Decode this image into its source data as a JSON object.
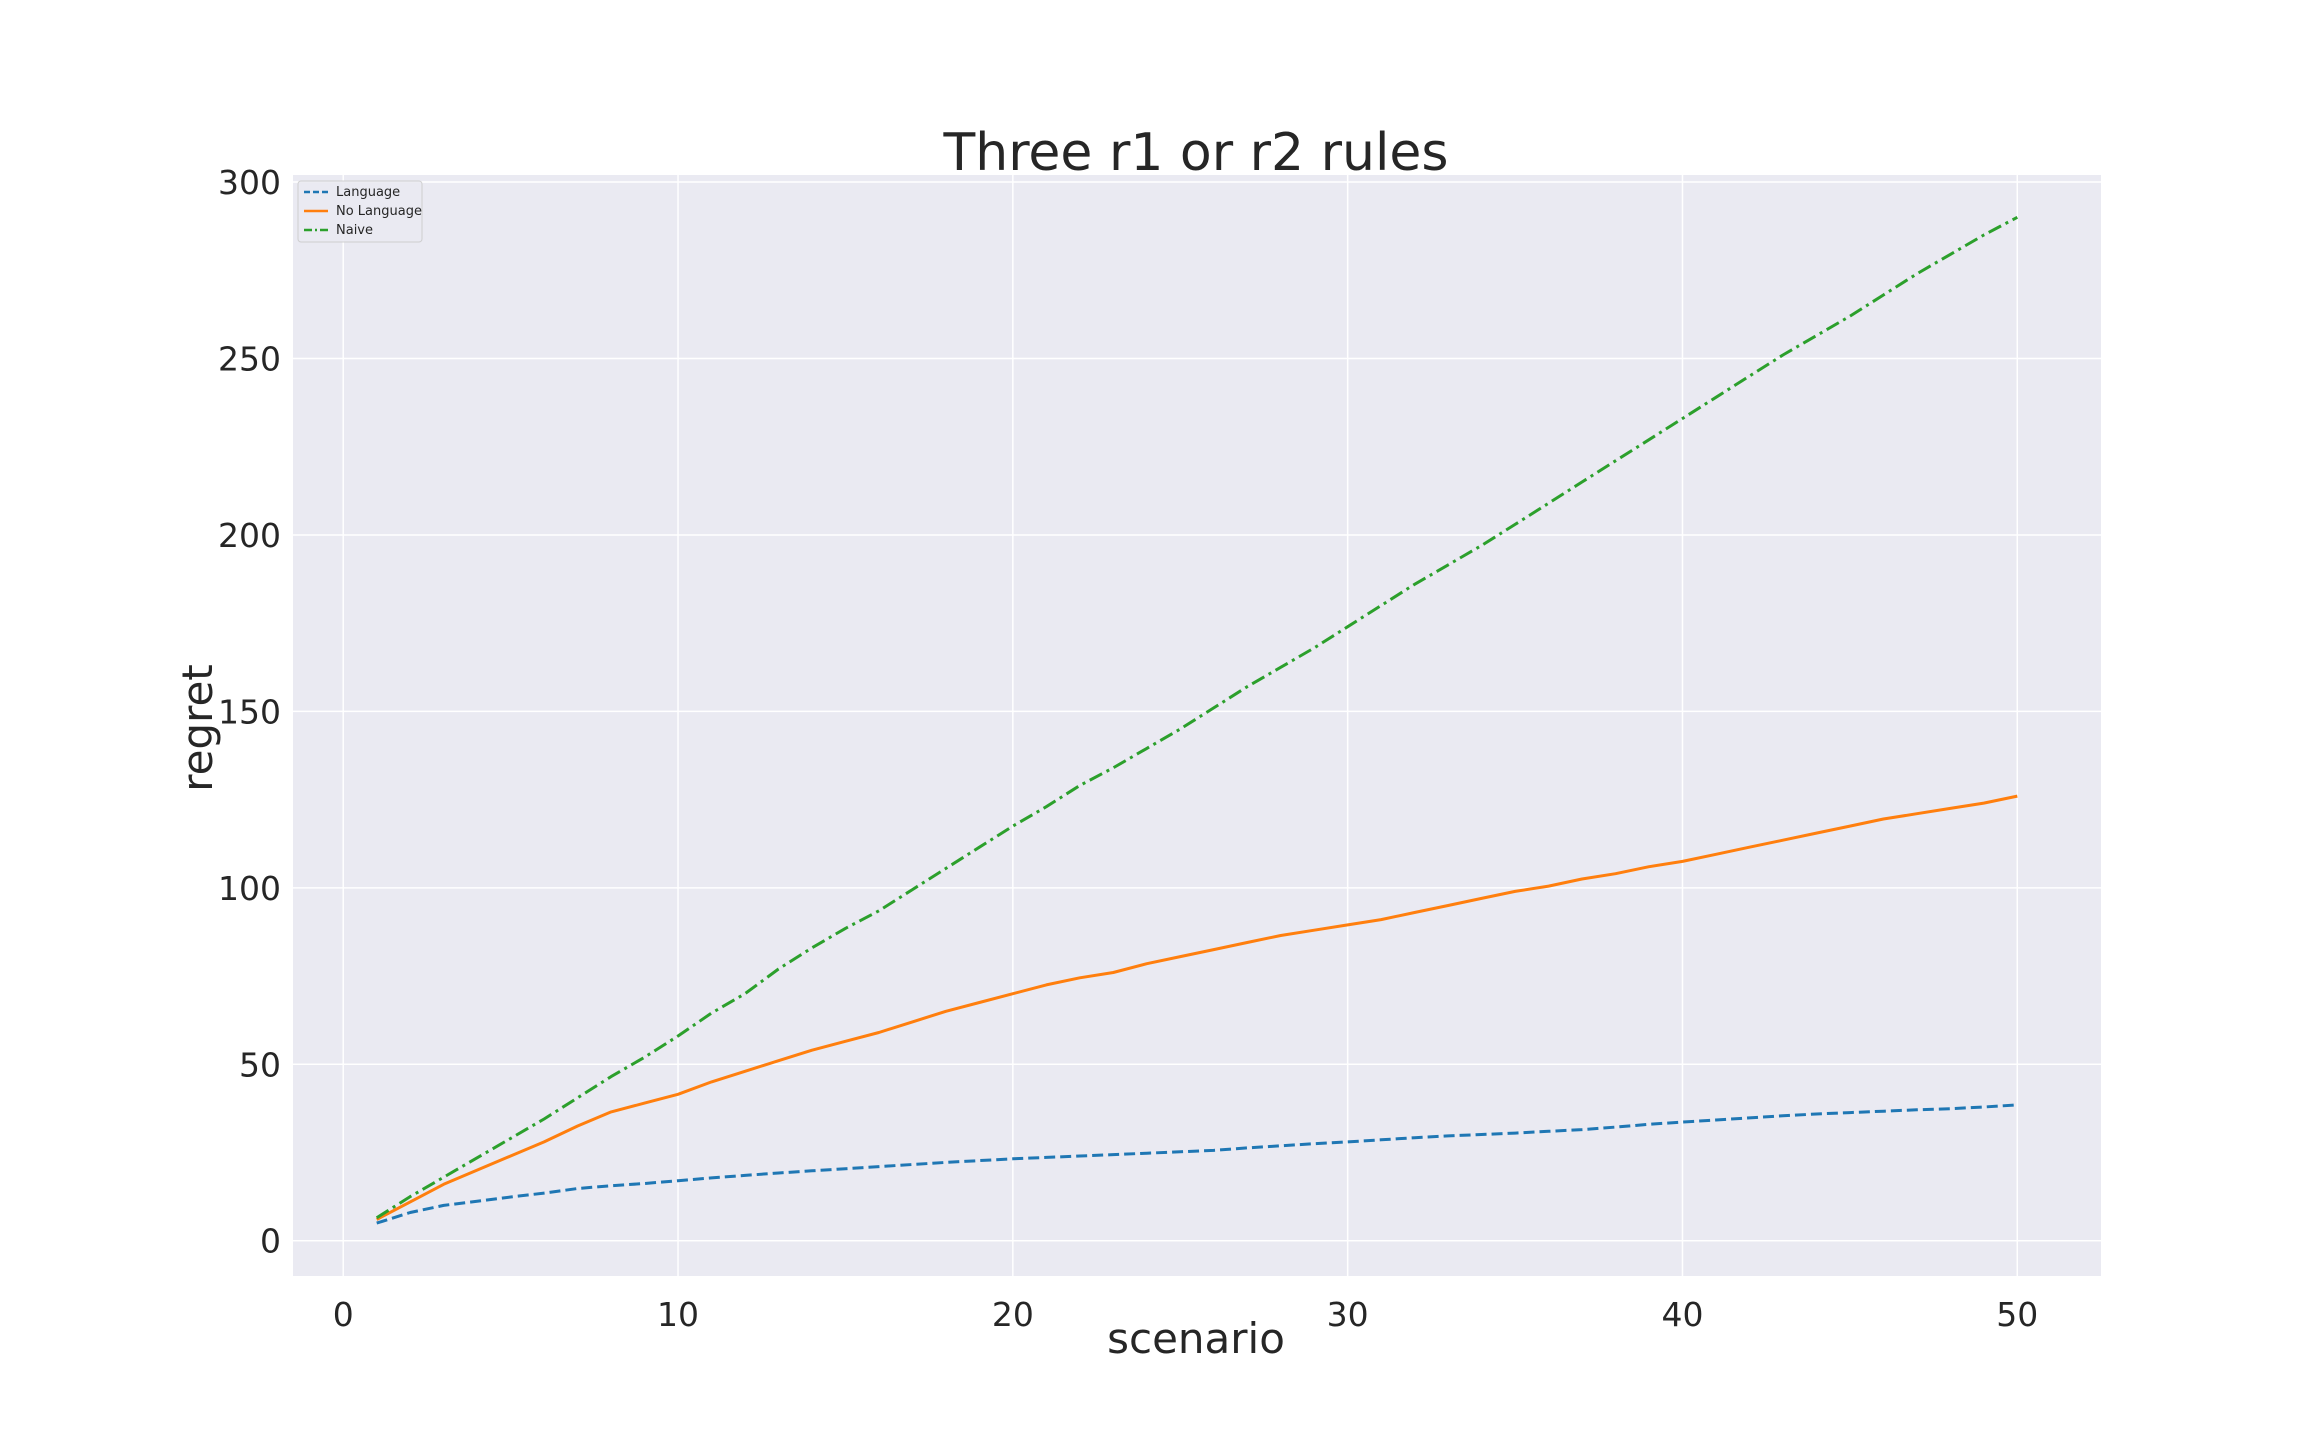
{
  "chart_data": {
    "type": "line",
    "title": "Three r1 or r2 rules",
    "xlabel": "scenario",
    "ylabel": "regret",
    "xlim": [
      -1.5,
      52.5
    ],
    "ylim": [
      -10,
      302
    ],
    "xticks": [
      0,
      10,
      20,
      30,
      40,
      50
    ],
    "yticks": [
      0,
      50,
      100,
      150,
      200,
      250,
      300
    ],
    "grid": true,
    "legend_position": "top-left",
    "x": [
      1,
      2,
      3,
      4,
      5,
      6,
      7,
      8,
      9,
      10,
      11,
      12,
      13,
      14,
      15,
      16,
      17,
      18,
      19,
      20,
      21,
      22,
      23,
      24,
      25,
      26,
      27,
      28,
      29,
      30,
      31,
      32,
      33,
      34,
      35,
      36,
      37,
      38,
      39,
      40,
      41,
      42,
      43,
      44,
      45,
      46,
      47,
      48,
      49,
      50
    ],
    "series": [
      {
        "name": "Language",
        "color": "#1f77b4",
        "dash": "dashed",
        "values": [
          5,
          8,
          10,
          11.2,
          12.4,
          13.5,
          14.8,
          15.6,
          16.2,
          17,
          17.8,
          18.5,
          19.2,
          19.8,
          20.4,
          21,
          21.6,
          22.2,
          22.7,
          23.2,
          23.6,
          24,
          24.4,
          24.8,
          25.2,
          25.6,
          26.3,
          26.9,
          27.5,
          28,
          28.6,
          29.2,
          29.7,
          30.1,
          30.5,
          31,
          31.5,
          32.2,
          33,
          33.6,
          34.2,
          34.8,
          35.4,
          35.9,
          36.3,
          36.7,
          37.1,
          37.4,
          37.9,
          38.5
        ]
      },
      {
        "name": "No Language",
        "color": "#ff7f0e",
        "dash": "solid",
        "values": [
          6,
          11,
          16,
          20,
          24,
          28,
          32.5,
          36.5,
          39,
          41.5,
          45,
          48,
          51,
          54,
          56.5,
          59,
          62,
          65,
          67.5,
          70,
          72.5,
          74.5,
          76,
          78.5,
          80.5,
          82.5,
          84.5,
          86.5,
          88,
          89.5,
          91,
          93,
          95,
          97,
          99,
          100.5,
          102.5,
          104,
          106,
          107.5,
          109.5,
          111.5,
          113.5,
          115.5,
          117.5,
          119.5,
          121,
          122.5,
          124,
          126
        ]
      },
      {
        "name": "Naive",
        "color": "#2ca02c",
        "dash": "dashdot",
        "values": [
          6.5,
          12.5,
          18,
          23.5,
          29,
          34.5,
          40.5,
          46.5,
          52,
          58,
          64.5,
          70,
          77,
          83,
          88.5,
          93.5,
          99.5,
          105.5,
          111.5,
          117.5,
          123,
          129,
          134,
          139.5,
          145,
          151,
          157,
          162.5,
          168,
          174,
          180,
          186,
          191.5,
          197,
          203,
          209,
          215,
          221,
          227,
          233,
          239,
          245,
          251,
          256.5,
          262,
          268,
          274,
          279.5,
          285,
          290
        ]
      }
    ]
  }
}
